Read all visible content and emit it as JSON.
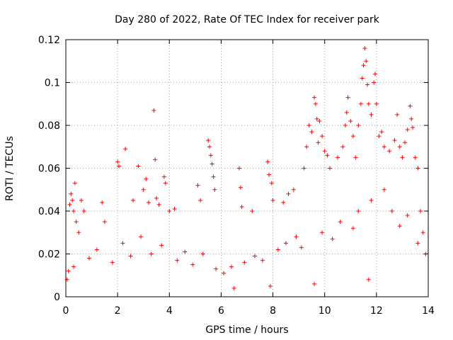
{
  "chart_data": {
    "type": "scatter",
    "title": "Day 280 of 2022, Rate Of TEC Index for receiver park",
    "xlabel": "GPS time / hours",
    "ylabel": "ROTI / TECUs",
    "xlim": [
      0,
      14
    ],
    "ylim": [
      0,
      0.12
    ],
    "x_ticks": [
      0,
      2,
      4,
      6,
      8,
      10,
      12,
      14
    ],
    "x_tick_labels": [
      "0",
      "2",
      "4",
      "6",
      "8",
      "10",
      "12",
      "14"
    ],
    "y_ticks": [
      0,
      0.02,
      0.04,
      0.06,
      0.08,
      0.1,
      0.12
    ],
    "y_tick_labels": [
      "0",
      "0.02",
      "0.04",
      "0.06",
      "0.08",
      "0.1",
      "0.12"
    ],
    "grid": true,
    "legend": "none",
    "marker": "plus",
    "color": "#ff0000",
    "series": [
      {
        "values": [
          [
            0.1,
            0.012
          ],
          [
            0.15,
            0.043
          ],
          [
            0.2,
            0.048
          ],
          [
            0.25,
            0.045
          ],
          [
            0.3,
            0.04
          ],
          [
            0.35,
            0.053
          ],
          [
            0.4,
            0.035
          ],
          [
            0.5,
            0.03
          ],
          [
            0.6,
            0.045
          ],
          [
            0.7,
            0.04
          ],
          [
            1.4,
            0.044
          ],
          [
            1.5,
            0.035
          ],
          [
            2.0,
            0.063
          ],
          [
            2.05,
            0.061
          ],
          [
            2.3,
            0.069
          ],
          [
            2.6,
            0.045
          ],
          [
            2.8,
            0.061
          ],
          [
            3.0,
            0.05
          ],
          [
            3.1,
            0.055
          ],
          [
            3.2,
            0.044
          ],
          [
            3.4,
            0.087
          ],
          [
            3.45,
            0.064
          ],
          [
            3.5,
            0.046
          ],
          [
            3.6,
            0.043
          ],
          [
            3.8,
            0.056
          ],
          [
            3.85,
            0.053
          ],
          [
            4.0,
            0.04
          ],
          [
            4.2,
            0.041
          ],
          [
            5.1,
            0.052
          ],
          [
            5.2,
            0.045
          ],
          [
            5.5,
            0.073
          ],
          [
            5.55,
            0.07
          ],
          [
            5.6,
            0.066
          ],
          [
            5.65,
            0.062
          ],
          [
            5.7,
            0.056
          ],
          [
            5.75,
            0.05
          ],
          [
            6.7,
            0.06
          ],
          [
            6.75,
            0.051
          ],
          [
            6.8,
            0.042
          ],
          [
            7.2,
            0.04
          ],
          [
            7.8,
            0.063
          ],
          [
            7.85,
            0.057
          ],
          [
            7.95,
            0.053
          ],
          [
            8.0,
            0.045
          ],
          [
            8.4,
            0.044
          ],
          [
            8.6,
            0.048
          ],
          [
            8.8,
            0.05
          ],
          [
            9.2,
            0.06
          ],
          [
            9.3,
            0.07
          ],
          [
            9.4,
            0.08
          ],
          [
            9.5,
            0.077
          ],
          [
            9.6,
            0.093
          ],
          [
            9.65,
            0.09
          ],
          [
            9.7,
            0.083
          ],
          [
            9.75,
            0.072
          ],
          [
            9.8,
            0.082
          ],
          [
            9.9,
            0.075
          ],
          [
            10.0,
            0.068
          ],
          [
            10.1,
            0.066
          ],
          [
            10.2,
            0.06
          ],
          [
            10.5,
            0.065
          ],
          [
            10.7,
            0.07
          ],
          [
            10.8,
            0.08
          ],
          [
            10.85,
            0.086
          ],
          [
            10.9,
            0.093
          ],
          [
            11.0,
            0.082
          ],
          [
            11.1,
            0.075
          ],
          [
            11.2,
            0.065
          ],
          [
            11.3,
            0.08
          ],
          [
            11.4,
            0.09
          ],
          [
            11.45,
            0.102
          ],
          [
            11.5,
            0.108
          ],
          [
            11.55,
            0.116
          ],
          [
            11.6,
            0.11
          ],
          [
            11.65,
            0.099
          ],
          [
            11.7,
            0.09
          ],
          [
            11.8,
            0.085
          ],
          [
            11.9,
            0.1
          ],
          [
            11.95,
            0.104
          ],
          [
            12.0,
            0.09
          ],
          [
            12.1,
            0.075
          ],
          [
            12.2,
            0.077
          ],
          [
            12.3,
            0.07
          ],
          [
            12.5,
            0.068
          ],
          [
            12.7,
            0.073
          ],
          [
            12.8,
            0.085
          ],
          [
            12.9,
            0.07
          ],
          [
            13.0,
            0.065
          ],
          [
            13.1,
            0.072
          ],
          [
            13.2,
            0.078
          ],
          [
            13.3,
            0.089
          ],
          [
            13.35,
            0.083
          ],
          [
            13.4,
            0.079
          ],
          [
            13.5,
            0.065
          ],
          [
            13.6,
            0.06
          ],
          [
            13.7,
            0.04
          ],
          [
            13.8,
            0.03
          ],
          [
            0.05,
            0.008
          ],
          [
            6.5,
            0.004
          ],
          [
            7.9,
            0.005
          ],
          [
            9.6,
            0.006
          ],
          [
            11.7,
            0.008
          ],
          [
            0.3,
            0.014
          ],
          [
            0.9,
            0.018
          ],
          [
            1.2,
            0.022
          ],
          [
            1.8,
            0.016
          ],
          [
            2.2,
            0.025
          ],
          [
            2.5,
            0.019
          ],
          [
            2.9,
            0.028
          ],
          [
            3.3,
            0.02
          ],
          [
            3.7,
            0.024
          ],
          [
            4.3,
            0.017
          ],
          [
            4.6,
            0.021
          ],
          [
            4.9,
            0.015
          ],
          [
            5.3,
            0.02
          ],
          [
            5.8,
            0.013
          ],
          [
            6.1,
            0.011
          ],
          [
            6.4,
            0.014
          ],
          [
            6.9,
            0.016
          ],
          [
            7.3,
            0.019
          ],
          [
            7.6,
            0.017
          ],
          [
            8.2,
            0.022
          ],
          [
            8.5,
            0.025
          ],
          [
            8.9,
            0.028
          ],
          [
            9.1,
            0.023
          ],
          [
            9.9,
            0.03
          ],
          [
            10.3,
            0.027
          ],
          [
            10.6,
            0.035
          ],
          [
            11.1,
            0.032
          ],
          [
            11.3,
            0.04
          ],
          [
            11.8,
            0.045
          ],
          [
            12.3,
            0.05
          ],
          [
            12.6,
            0.04
          ],
          [
            12.9,
            0.033
          ],
          [
            13.2,
            0.038
          ],
          [
            13.6,
            0.025
          ],
          [
            13.9,
            0.02
          ]
        ]
      }
    ]
  }
}
